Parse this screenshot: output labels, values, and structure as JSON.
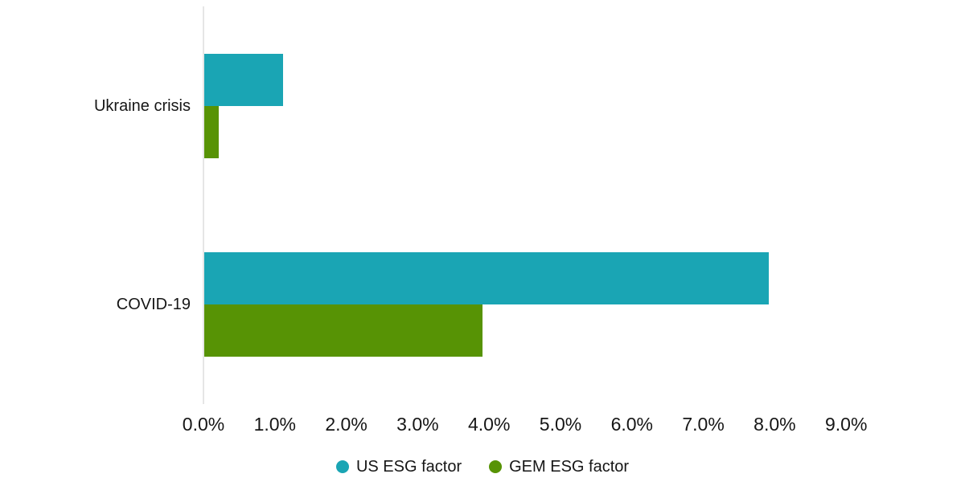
{
  "chart_data": {
    "type": "bar",
    "orientation": "horizontal",
    "title": "",
    "xlabel": "",
    "ylabel": "",
    "categories": [
      "Ukraine crisis",
      "COVID-19"
    ],
    "series": [
      {
        "name": "US ESG factor",
        "color": "#1aa5b4",
        "values": [
          1.1,
          7.9
        ]
      },
      {
        "name": "GEM ESG factor",
        "color": "#579305",
        "values": [
          0.2,
          3.9
        ]
      }
    ],
    "x_axis": {
      "min": 0,
      "max": 9,
      "tick_step": 1,
      "unit": "%",
      "tick_labels": [
        "0.0%",
        "1.0%",
        "2.0%",
        "3.0%",
        "4.0%",
        "5.0%",
        "6.0%",
        "7.0%",
        "8.0%",
        "9.0%"
      ]
    },
    "legend": {
      "position": "bottom",
      "entries": [
        "US ESG factor",
        "GEM ESG factor"
      ]
    },
    "grid": false,
    "background_color": "#ffffff",
    "axis_line_color": "#e6e6e6",
    "text_color": "#161616"
  }
}
